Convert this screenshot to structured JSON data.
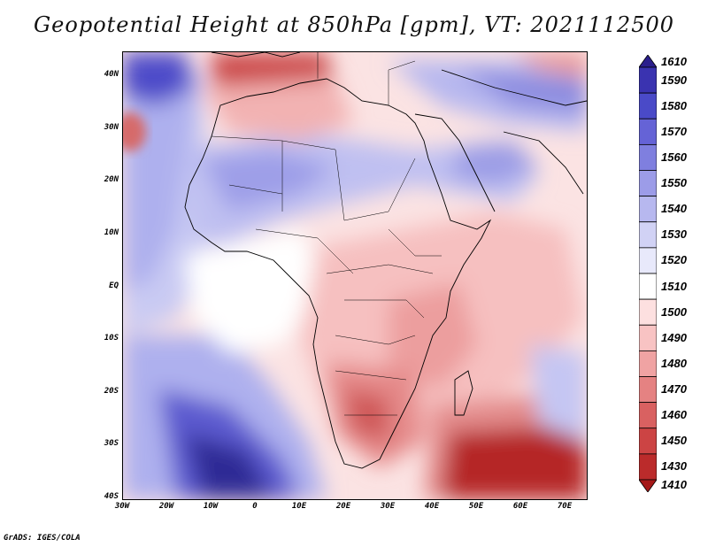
{
  "title": "Geopotential Height at 850hPa [gpm], VT: 2021112500",
  "footer": "GrADS: IGES/COLA",
  "latitude_labels": [
    "40N",
    "30N",
    "20N",
    "10N",
    "EQ",
    "10S",
    "20S",
    "30S",
    "40S"
  ],
  "longitude_labels": [
    "30W",
    "20W",
    "10W",
    "0",
    "10E",
    "20E",
    "30E",
    "40E",
    "50E",
    "60E",
    "70E"
  ],
  "colorbar": {
    "labels": [
      "1610",
      "1590",
      "1580",
      "1570",
      "1560",
      "1550",
      "1540",
      "1530",
      "1520",
      "1510",
      "1500",
      "1490",
      "1480",
      "1470",
      "1460",
      "1450",
      "1430",
      "1410"
    ],
    "colors": [
      "#2b1f8c",
      "#3a33b0",
      "#4a4ac8",
      "#6563d6",
      "#7f7fdf",
      "#9c9ce8",
      "#b7b8ef",
      "#d1d2f5",
      "#e8e9fb",
      "#ffffff",
      "#fde0e0",
      "#f8c3c3",
      "#f0a3a3",
      "#e58282",
      "#d96161",
      "#cc4444",
      "#bb2b2b",
      "#a51818"
    ]
  }
}
